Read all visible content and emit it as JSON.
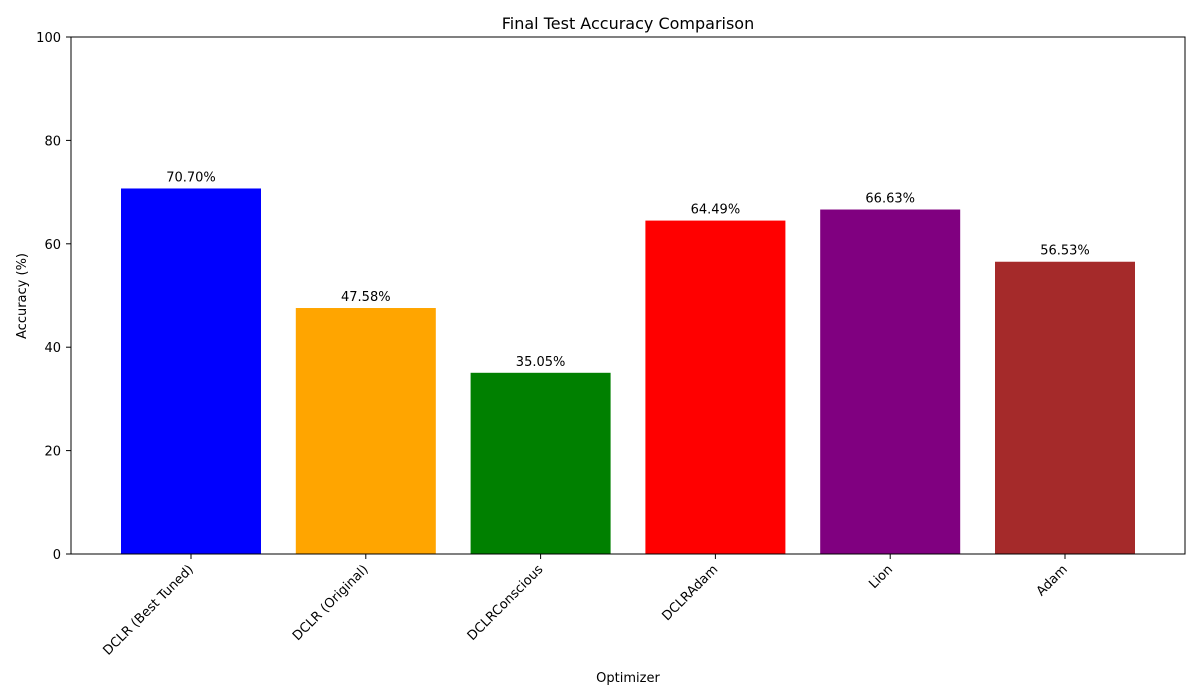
{
  "chart_data": {
    "type": "bar",
    "title": "Final Test Accuracy Comparison",
    "xlabel": "Optimizer",
    "ylabel": "Accuracy (%)",
    "ylim": [
      0,
      100
    ],
    "yticks": [
      0,
      20,
      40,
      60,
      80,
      100
    ],
    "grid": false,
    "categories": [
      "DCLR (Best Tuned)",
      "DCLR (Original)",
      "DCLRConscious",
      "DCLRAdam",
      "Lion",
      "Adam"
    ],
    "values": [
      70.7,
      47.58,
      35.05,
      64.49,
      66.63,
      56.53
    ],
    "value_labels": [
      "70.70%",
      "47.58%",
      "35.05%",
      "64.49%",
      "66.63%",
      "56.53%"
    ],
    "colors": [
      "#0000ff",
      "#ffa500",
      "#008000",
      "#ff0000",
      "#800080",
      "#a52a2a"
    ]
  }
}
